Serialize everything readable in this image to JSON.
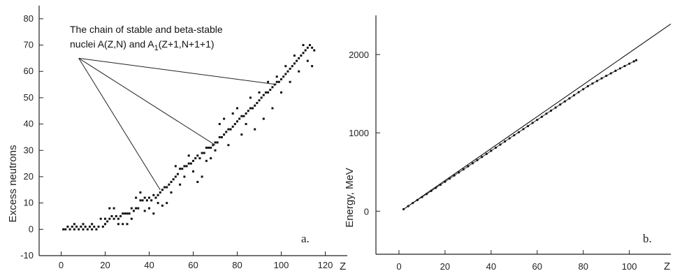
{
  "chart_data": [
    {
      "type": "scatter",
      "panel_label": "a.",
      "xlabel": "Z",
      "ylabel": "Excess  neutrons",
      "xlim": [
        -10,
        130
      ],
      "ylim": [
        -10,
        85
      ],
      "x_ticks": [
        "0",
        "20",
        "40",
        "60",
        "80",
        "100",
        "120"
      ],
      "x_tick_values": [
        0,
        20,
        40,
        60,
        80,
        100,
        120
      ],
      "y_ticks": [
        "-10",
        "0",
        "10",
        "20",
        "30",
        "40",
        "50",
        "60",
        "70",
        "80"
      ],
      "y_tick_values": [
        -10,
        0,
        10,
        20,
        30,
        40,
        50,
        60,
        70,
        80
      ],
      "annotation": {
        "line1": "The chain of stable and beta-stable",
        "line2_prefix": "nuclei A(Z,N) and A",
        "line2_sub": "1",
        "line2_suffix": "(Z+1,N+1+1)",
        "origin": [
          8,
          65
        ],
        "targets": [
          [
            45,
            15
          ],
          [
            70,
            32
          ],
          [
            98,
            55
          ]
        ]
      },
      "series": [
        {
          "points": [
            [
              1,
              0
            ],
            [
              2,
              0
            ],
            [
              3,
              1
            ],
            [
              4,
              0
            ],
            [
              5,
              1
            ],
            [
              6,
              0
            ],
            [
              7,
              1
            ],
            [
              8,
              0
            ],
            [
              9,
              1
            ],
            [
              10,
              0
            ],
            [
              11,
              1
            ],
            [
              12,
              0
            ],
            [
              13,
              1
            ],
            [
              14,
              0
            ],
            [
              15,
              1
            ],
            [
              16,
              0
            ],
            [
              17,
              1
            ],
            [
              18,
              4
            ],
            [
              19,
              1
            ],
            [
              20,
              2
            ],
            [
              21,
              3
            ],
            [
              22,
              4
            ],
            [
              23,
              5
            ],
            [
              24,
              4
            ],
            [
              25,
              5
            ],
            [
              26,
              4
            ],
            [
              27,
              5
            ],
            [
              28,
              6
            ],
            [
              29,
              6
            ],
            [
              30,
              6
            ],
            [
              31,
              6
            ],
            [
              32,
              8
            ],
            [
              33,
              7
            ],
            [
              34,
              8
            ],
            [
              35,
              8
            ],
            [
              36,
              11
            ],
            [
              37,
              11
            ],
            [
              38,
              12
            ],
            [
              39,
              11
            ],
            [
              40,
              12
            ],
            [
              41,
              11
            ],
            [
              42,
              13
            ],
            [
              43,
              12
            ],
            [
              44,
              13
            ],
            [
              45,
              14
            ],
            [
              46,
              15
            ],
            [
              47,
              16
            ],
            [
              48,
              16
            ],
            [
              49,
              17
            ],
            [
              50,
              18
            ],
            [
              51,
              19
            ],
            [
              52,
              20
            ],
            [
              53,
              21
            ],
            [
              54,
              23
            ],
            [
              55,
              23
            ],
            [
              56,
              24
            ],
            [
              57,
              24
            ],
            [
              58,
              25
            ],
            [
              59,
              25
            ],
            [
              60,
              26
            ],
            [
              61,
              27
            ],
            [
              62,
              28
            ],
            [
              63,
              27
            ],
            [
              64,
              29
            ],
            [
              65,
              29
            ],
            [
              66,
              31
            ],
            [
              67,
              31
            ],
            [
              68,
              31
            ],
            [
              69,
              32
            ],
            [
              70,
              33
            ],
            [
              71,
              33
            ],
            [
              72,
              35
            ],
            [
              73,
              35
            ],
            [
              74,
              36
            ],
            [
              75,
              37
            ],
            [
              76,
              38
            ],
            [
              77,
              38
            ],
            [
              78,
              39
            ],
            [
              79,
              40
            ],
            [
              80,
              41
            ],
            [
              81,
              42
            ],
            [
              82,
              43
            ],
            [
              83,
              43
            ],
            [
              84,
              44
            ],
            [
              85,
              45
            ],
            [
              86,
              46
            ],
            [
              87,
              46
            ],
            [
              88,
              47
            ],
            [
              89,
              48
            ],
            [
              90,
              49
            ],
            [
              91,
              50
            ],
            [
              92,
              51
            ],
            [
              93,
              52
            ],
            [
              94,
              52
            ],
            [
              95,
              53
            ],
            [
              96,
              54
            ],
            [
              97,
              55
            ],
            [
              98,
              56
            ],
            [
              99,
              56
            ],
            [
              100,
              57
            ],
            [
              101,
              58
            ],
            [
              102,
              59
            ],
            [
              103,
              60
            ],
            [
              104,
              61
            ],
            [
              105,
              62
            ],
            [
              106,
              63
            ],
            [
              107,
              64
            ],
            [
              108,
              65
            ],
            [
              109,
              66
            ],
            [
              110,
              67
            ],
            [
              111,
              68
            ],
            [
              112,
              69
            ],
            [
              113,
              70
            ],
            [
              114,
              69
            ],
            [
              115,
              68
            ],
            [
              6,
              2
            ],
            [
              10,
              2
            ],
            [
              14,
              2
            ],
            [
              20,
              4
            ],
            [
              22,
              8
            ],
            [
              24,
              8
            ],
            [
              26,
              2
            ],
            [
              28,
              2
            ],
            [
              30,
              2
            ],
            [
              32,
              4
            ],
            [
              34,
              12
            ],
            [
              36,
              14
            ],
            [
              38,
              7
            ],
            [
              40,
              8
            ],
            [
              42,
              6
            ],
            [
              44,
              10
            ],
            [
              46,
              9
            ],
            [
              48,
              10
            ],
            [
              50,
              14
            ],
            [
              52,
              24
            ],
            [
              54,
              17
            ],
            [
              56,
              20
            ],
            [
              58,
              28
            ],
            [
              60,
              22
            ],
            [
              62,
              18
            ],
            [
              64,
              20
            ],
            [
              66,
              26
            ],
            [
              68,
              27
            ],
            [
              70,
              30
            ],
            [
              72,
              40
            ],
            [
              74,
              42
            ],
            [
              76,
              32
            ],
            [
              78,
              44
            ],
            [
              80,
              46
            ],
            [
              82,
              36
            ],
            [
              84,
              40
            ],
            [
              86,
              50
            ],
            [
              88,
              38
            ],
            [
              90,
              52
            ],
            [
              92,
              42
            ],
            [
              94,
              56
            ],
            [
              96,
              46
            ],
            [
              98,
              58
            ],
            [
              100,
              52
            ],
            [
              102,
              62
            ],
            [
              104,
              56
            ],
            [
              106,
              66
            ],
            [
              108,
              60
            ],
            [
              110,
              70
            ],
            [
              112,
              64
            ],
            [
              114,
              62
            ]
          ]
        }
      ]
    },
    {
      "type": "line",
      "panel_label": "b.",
      "xlabel": "Z",
      "ylabel": "Energy, MeV",
      "xlim": [
        -10,
        118
      ],
      "ylim": [
        -550,
        2500
      ],
      "x_ticks": [
        "0",
        "20",
        "40",
        "60",
        "80",
        "100"
      ],
      "x_tick_values": [
        0,
        20,
        40,
        60,
        80,
        100
      ],
      "y_ticks": [
        "0",
        "1000",
        "2000"
      ],
      "y_tick_values": [
        0,
        1000,
        2000
      ],
      "series": [
        {
          "kind": "line",
          "x": [
            2,
            118
          ],
          "y": [
            25,
            2390
          ]
        },
        {
          "kind": "dots",
          "x": [
            2,
            4,
            6,
            8,
            10,
            12,
            14,
            16,
            18,
            20,
            22,
            24,
            26,
            28,
            30,
            32,
            34,
            36,
            38,
            40,
            42,
            44,
            46,
            48,
            50,
            52,
            54,
            56,
            58,
            60,
            62,
            64,
            66,
            68,
            70,
            72,
            74,
            76,
            78,
            80,
            82,
            84,
            86,
            88,
            90,
            92,
            94,
            96,
            98,
            100,
            102,
            103
          ],
          "y": [
            25,
            64,
            104,
            142,
            180,
            219,
            259,
            298,
            337,
            376,
            416,
            455,
            495,
            533,
            573,
            612,
            652,
            692,
            731,
            771,
            810,
            850,
            890,
            930,
            969,
            1008,
            1048,
            1087,
            1127,
            1166,
            1205,
            1245,
            1284,
            1323,
            1362,
            1401,
            1440,
            1480,
            1519,
            1557,
            1596,
            1630,
            1663,
            1696,
            1728,
            1760,
            1792,
            1823,
            1853,
            1883,
            1913,
            1928
          ]
        }
      ]
    }
  ]
}
